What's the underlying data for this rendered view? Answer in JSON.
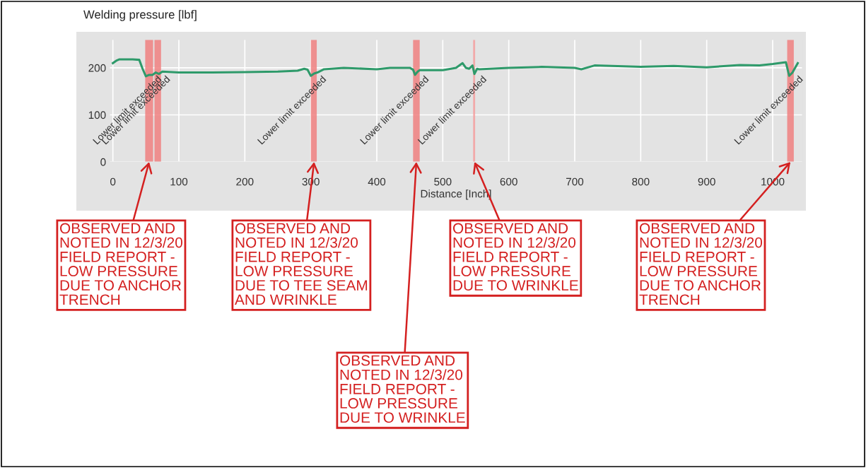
{
  "chart_data": {
    "type": "line",
    "title": "Welding pressure [lbf]",
    "xlabel": "Distance [Inch]",
    "xlim": [
      -5,
      1045
    ],
    "xticks": [
      0,
      100,
      200,
      300,
      400,
      500,
      600,
      700,
      800,
      900,
      1000
    ],
    "ylim": [
      0,
      260
    ],
    "yticks": [
      0,
      100,
      200
    ],
    "grid": true,
    "marker": "none",
    "line_style": "solid",
    "series": [
      {
        "color": "#2e9a6a",
        "x": [
          0,
          5,
          10,
          20,
          30,
          40,
          45,
          50,
          55,
          60,
          65,
          70,
          75,
          100,
          150,
          200,
          250,
          280,
          290,
          295,
          300,
          305,
          310,
          320,
          350,
          400,
          420,
          450,
          455,
          458,
          462,
          465,
          500,
          520,
          530,
          535,
          540,
          545,
          548,
          552,
          555,
          600,
          650,
          700,
          710,
          730,
          800,
          850,
          900,
          950,
          980,
          1000,
          1020,
          1025,
          1030,
          1038
        ],
        "values": [
          210,
          215,
          218,
          218,
          218,
          217,
          198,
          182,
          185,
          185,
          190,
          187,
          192,
          190,
          190,
          191,
          192,
          194,
          198,
          196,
          183,
          188,
          190,
          197,
          200,
          197,
          200,
          200,
          196,
          185,
          192,
          195,
          195,
          200,
          210,
          200,
          198,
          205,
          187,
          198,
          197,
          200,
          202,
          200,
          197,
          205,
          202,
          204,
          201,
          206,
          205,
          208,
          212,
          183,
          190,
          210
        ]
      }
    ],
    "bands": [
      {
        "axis": "x",
        "from": 49,
        "to": 61,
        "label": "Lower limit exceeded",
        "color": "#f08080"
      },
      {
        "axis": "x",
        "from": 63,
        "to": 73,
        "label": "Lower limit exceeded",
        "color": "#f08080"
      },
      {
        "axis": "x",
        "from": 300,
        "to": 309,
        "label": "Lower limit exceeded",
        "color": "#f08080"
      },
      {
        "axis": "x",
        "from": 455,
        "to": 465,
        "label": "Lower limit exceeded",
        "color": "#f08080"
      },
      {
        "axis": "x",
        "from": 546,
        "to": 549,
        "label": "Lower limit exceeded",
        "color": "#f4a0a0"
      },
      {
        "axis": "x",
        "from": 1022,
        "to": 1032,
        "label": "Lower limit exceeded",
        "color": "#f08080"
      }
    ],
    "annotations": [
      {
        "text": "OBSERVED AND\nNOTED IN 12/3/20\nFIELD REPORT -\nLOW PRESSURE\nDUE TO ANCHOR\nTRENCH",
        "x": 55,
        "y": 0
      },
      {
        "text": "OBSERVED AND\nNOTED IN 12/3/20\nFIELD REPORT -\nLOW PRESSURE\nDUE TO TEE SEAM\nAND WRINKLE",
        "x": 305,
        "y": 0
      },
      {
        "text": "OBSERVED AND\nNOTED IN 12/3/20\nFIELD REPORT -\nLOW PRESSURE\nDUE TO WRINKLE",
        "x": 460,
        "y": 0
      },
      {
        "text": "OBSERVED AND\nNOTED IN 12/3/20\nFIELD REPORT -\nLOW PRESSURE\nDUE TO WRINKLE",
        "x": 548,
        "y": 0
      },
      {
        "text": "OBSERVED AND\nNOTED IN 12/3/20\nFIELD REPORT -\nLOW PRESSURE\nDUE TO ANCHOR\nTRENCH",
        "x": 1027,
        "y": 0
      }
    ]
  }
}
